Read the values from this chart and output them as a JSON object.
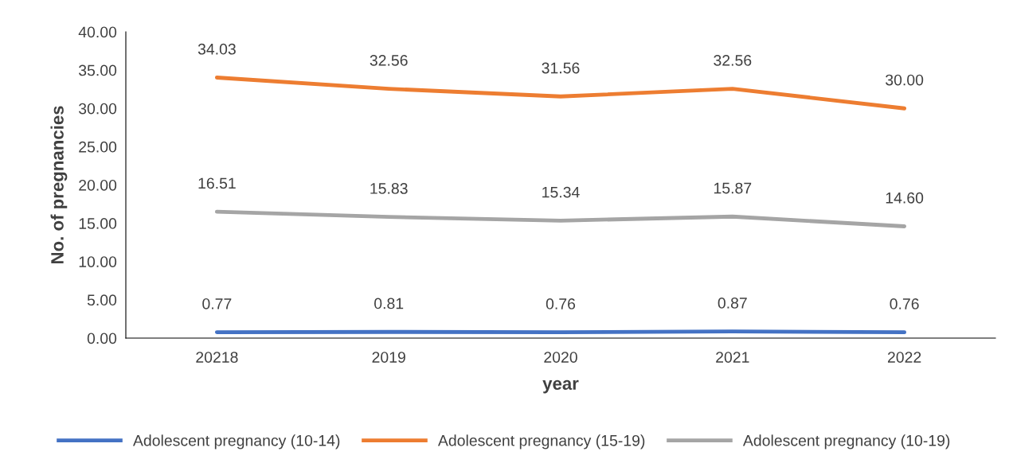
{
  "chart_data": {
    "type": "line",
    "xlabel": "year",
    "ylabel": "No. of pregnancies",
    "categories": [
      "20218",
      "2019",
      "2020",
      "2021",
      "2022"
    ],
    "series": [
      {
        "name": "Adolescent pregnancy (10-14)",
        "color": "#4472c4",
        "values": [
          0.77,
          0.81,
          0.76,
          0.87,
          0.76
        ],
        "value_labels": [
          "0.77",
          "0.81",
          "0.76",
          "0.87",
          "0.76"
        ]
      },
      {
        "name": "Adolescent pregnancy (15-19)",
        "color": "#ed7d31",
        "values": [
          34.03,
          32.56,
          31.56,
          32.56,
          30.0
        ],
        "value_labels": [
          "34.03",
          "32.56",
          "31.56",
          "32.56",
          "30.00"
        ]
      },
      {
        "name": "Adolescent pregnancy (10-19)",
        "color": "#a5a5a5",
        "values": [
          16.51,
          15.83,
          15.34,
          15.87,
          14.6
        ],
        "value_labels": [
          "16.51",
          "15.83",
          "15.34",
          "15.87",
          "14.60"
        ]
      }
    ],
    "ylim": [
      0,
      40
    ],
    "yticks": [
      {
        "value": 0,
        "label": "0.00"
      },
      {
        "value": 5,
        "label": "5.00"
      },
      {
        "value": 10,
        "label": "10.00"
      },
      {
        "value": 15,
        "label": "15.00"
      },
      {
        "value": 20,
        "label": "20.00"
      },
      {
        "value": 25,
        "label": "25.00"
      },
      {
        "value": 30,
        "label": "30.00"
      },
      {
        "value": 35,
        "label": "35.00"
      },
      {
        "value": 40,
        "label": "40.00"
      }
    ],
    "legend": "bottom",
    "marker": "none",
    "line_style": "solid"
  }
}
